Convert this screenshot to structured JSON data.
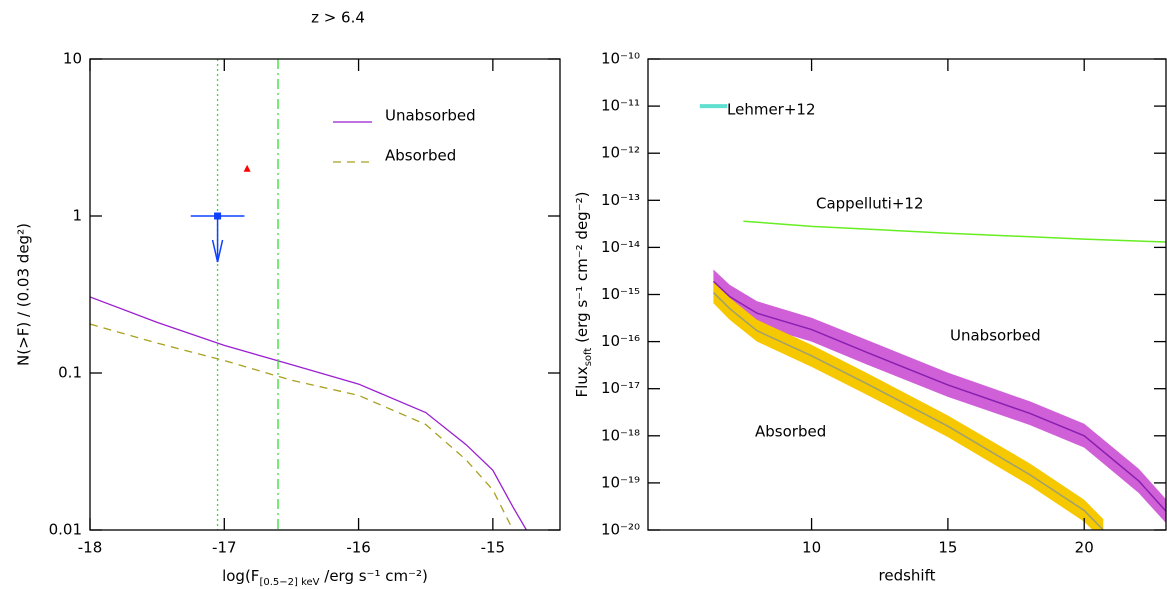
{
  "chart_data": [
    {
      "type": "line",
      "title": "z > 6.4",
      "xlabel": [
        "log(F",
        "[0.5−2] keV",
        " /erg s⁻¹ cm⁻²)"
      ],
      "ylabel": "N(>F) / (0.03 deg²)",
      "xlim": [
        -18,
        -14.5
      ],
      "xticks": [
        -18,
        -17,
        -16,
        -15
      ],
      "ylim": [
        0.01,
        10
      ],
      "yticks": [
        0.01,
        0.1,
        1,
        10
      ],
      "yscale": "log",
      "legend": "upper right",
      "series": [
        {
          "name": "Unabsorbed",
          "color": "#9b1fd1",
          "dash": "solid",
          "x": [
            -18,
            -17.5,
            -17,
            -16.5,
            -16,
            -15.5,
            -15.2,
            -15,
            -14.85,
            -14.75
          ],
          "values": [
            0.305,
            0.21,
            0.15,
            0.113,
            0.085,
            0.056,
            0.035,
            0.024,
            0.014,
            0.01
          ]
        },
        {
          "name": "Absorbed",
          "color": "#a8a020",
          "dash": "dashed",
          "x": [
            -18,
            -17.5,
            -17,
            -16.5,
            -16,
            -15.5,
            -15.2,
            -15,
            -14.85
          ],
          "values": [
            0.205,
            0.155,
            0.12,
            0.09,
            0.072,
            0.047,
            0.028,
            0.018,
            0.01
          ]
        }
      ],
      "points": [
        {
          "x": -17.05,
          "y": 1,
          "xerr": 0.2,
          "upper_limit": true,
          "color": "#1040ff",
          "marker": "square"
        },
        {
          "x": -16.83,
          "y": 2,
          "color": "#ff0000",
          "marker": "triangle"
        }
      ],
      "vlines": [
        {
          "x": -17.05,
          "color": "#33dd33",
          "style": "dotted"
        },
        {
          "x": -16.6,
          "color": "#33dd33",
          "style": "dashdot"
        }
      ]
    },
    {
      "type": "line",
      "xlabel": "redshift",
      "ylabel": [
        "Flux",
        "soft",
        "  (erg s⁻¹ cm⁻² deg⁻²)"
      ],
      "xlim": [
        4,
        23
      ],
      "xticks": [
        10,
        15,
        20
      ],
      "ylim": [
        1e-20,
        1e-10
      ],
      "yscale": "log",
      "yticks": [
        {
          "value": 1e-20,
          "label": "10⁻²⁰"
        },
        {
          "value": 1e-19,
          "label": "10⁻¹⁹"
        },
        {
          "value": 1e-18,
          "label": "10⁻¹⁸"
        },
        {
          "value": 1e-17,
          "label": "10⁻¹⁷"
        },
        {
          "value": 1e-16,
          "label": "10⁻¹⁶"
        },
        {
          "value": 1e-15,
          "label": "10⁻¹⁵"
        },
        {
          "value": 1e-14,
          "label": "10⁻¹⁴"
        },
        {
          "value": 1e-13,
          "label": "10⁻¹³"
        },
        {
          "value": 1e-12,
          "label": "10⁻¹²"
        },
        {
          "value": 1e-11,
          "label": "10⁻¹¹"
        },
        {
          "value": 1e-10,
          "label": "10⁻¹⁰"
        }
      ],
      "series": [
        {
          "name": "Lehmer+12",
          "color": "#60e0d0",
          "width": 4,
          "x": [
            5.9,
            6.9
          ],
          "values": [
            1e-11,
            1e-11
          ]
        },
        {
          "name": "Cappelluti+12",
          "color": "#66ee22",
          "width": 1.5,
          "x": [
            7.5,
            10,
            15,
            20,
            23
          ],
          "values": [
            3.6e-14,
            2.8e-14,
            2e-14,
            1.5e-14,
            1.3e-14
          ]
        },
        {
          "name": "Unabsorbed",
          "color": "#8a1fb0",
          "band_color": "#d060d8",
          "label_color": "#9b20c8",
          "width": 1.5,
          "x": [
            6.4,
            7,
            8,
            10,
            12,
            15,
            18,
            20,
            22,
            23
          ],
          "values": [
            1.9e-15,
            9e-16,
            4e-16,
            1.8e-16,
            6e-17,
            1.2e-17,
            3e-18,
            1e-18,
            1.1e-19,
            2.5e-20
          ],
          "upper": [
            3.4e-15,
            1.6e-15,
            7.2e-16,
            3.2e-16,
            1.1e-16,
            2.2e-17,
            5.4e-18,
            1.8e-18,
            2e-19,
            4.5e-20
          ],
          "lower": [
            1.05e-15,
            5e-16,
            2.2e-16,
            1e-16,
            3.3e-17,
            6.7e-18,
            1.7e-18,
            5.6e-19,
            6.1e-20,
            1.4e-20
          ]
        },
        {
          "name": "Absorbed",
          "color": "#a0a070",
          "band_color": "#f5c800",
          "label_color": "#b8a800",
          "width": 1.5,
          "x": [
            6.4,
            7,
            8,
            10,
            12,
            15,
            18,
            20,
            20.7
          ],
          "values": [
            1.1e-15,
            5e-16,
            1.7e-16,
            5e-17,
            1.3e-17,
            1.6e-18,
            1.5e-19,
            2.6e-20,
            1e-20
          ],
          "upper": [
            1.9e-15,
            8.5e-16,
            2.9e-16,
            8.5e-17,
            2.2e-17,
            2.7e-18,
            2.6e-19,
            4.4e-20,
            1.7e-20
          ],
          "lower": [
            6.5e-16,
            2.9e-16,
            1e-16,
            2.9e-17,
            7.6e-18,
            9.4e-19,
            8.8e-20,
            1.5e-20,
            5.9e-21
          ]
        }
      ]
    }
  ]
}
